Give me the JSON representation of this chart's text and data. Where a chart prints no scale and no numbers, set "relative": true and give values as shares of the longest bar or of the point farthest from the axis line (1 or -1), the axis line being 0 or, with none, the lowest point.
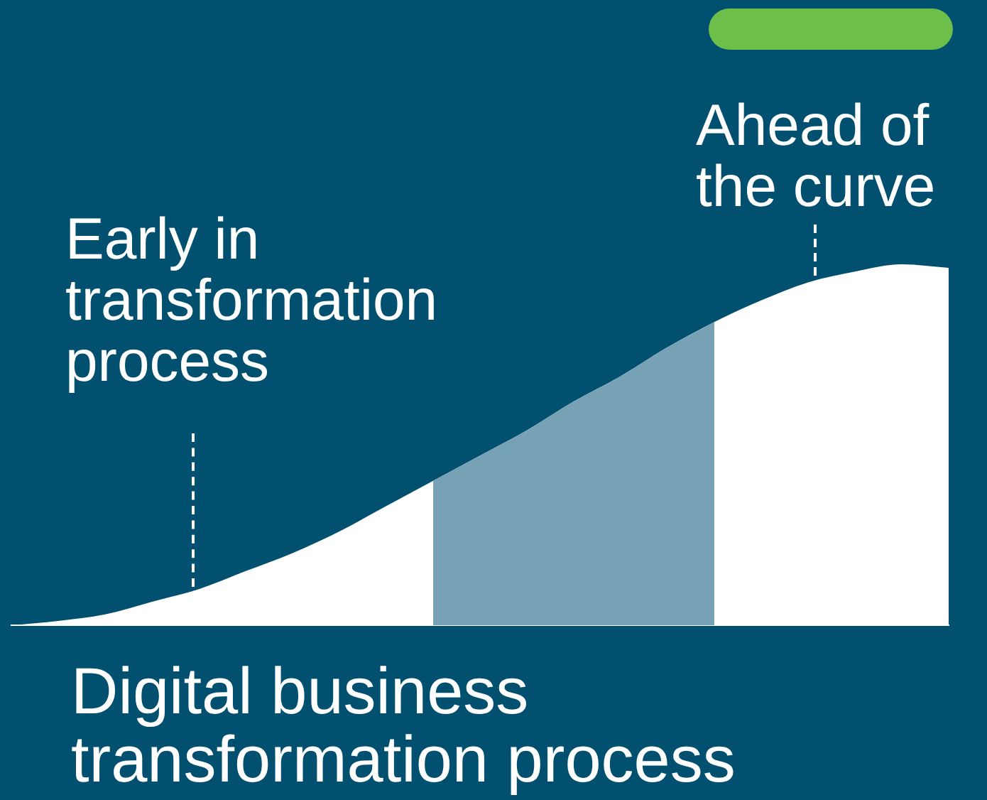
{
  "chart_data": {
    "type": "area",
    "relative": true,
    "xlabel": "Digital business transformation process",
    "categories": [
      null,
      null,
      null,
      null,
      null,
      null,
      null,
      null,
      null,
      null,
      null,
      null,
      null,
      null,
      null,
      null,
      null,
      null,
      null,
      null,
      null
    ],
    "series": [
      {
        "color": "#ffffff",
        "values": [
          0,
          0.012,
          0.03,
          0.065,
          0.1,
          0.15,
          0.2,
          0.26,
          0.33,
          0.4,
          0.47,
          0.54,
          0.62,
          0.69,
          0.77,
          0.84,
          0.9,
          0.95,
          0.98,
          1,
          0.99
        ]
      },
      {
        "color": "#77a2b5",
        "values": [
          null,
          null,
          null,
          null,
          null,
          null,
          null,
          null,
          null,
          0.4,
          0.47,
          0.54,
          0.62,
          0.69,
          0.77,
          0.84,
          null,
          null,
          null,
          null,
          null
        ]
      }
    ],
    "annotations": [
      "Early in transformation process",
      "Ahead of the curve"
    ],
    "legend": false
  }
}
